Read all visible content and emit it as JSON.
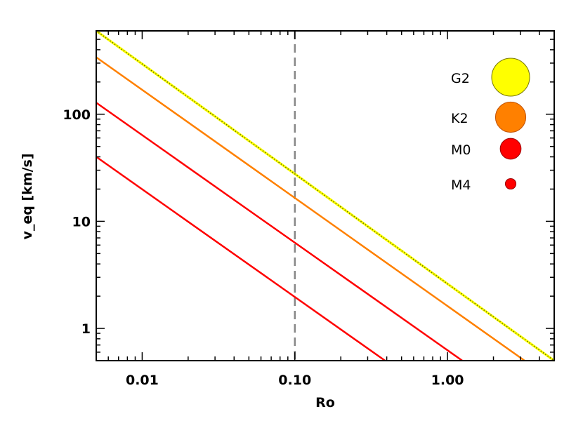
{
  "chart_data": {
    "type": "line",
    "title": "",
    "xlabel": "Ro",
    "ylabel": "v_eq [km/s]",
    "xscale": "log",
    "yscale": "log",
    "xlim": [
      0.005,
      5.0
    ],
    "ylim": [
      0.5,
      600
    ],
    "x_ticks": [
      {
        "value": 0.01,
        "label": "0.01"
      },
      {
        "value": 0.1,
        "label": "0.10"
      },
      {
        "value": 1.0,
        "label": "1.00"
      }
    ],
    "y_ticks": [
      {
        "value": 1,
        "label": "1"
      },
      {
        "value": 10,
        "label": "10"
      },
      {
        "value": 100,
        "label": "100"
      }
    ],
    "reference_line": {
      "axis": "x",
      "value": 0.1,
      "style": "dashed",
      "color": "#888888"
    },
    "legend_position": "top-right",
    "series": [
      {
        "name": "G2",
        "color": "#ffff00",
        "edge": "#777700",
        "style": "dotted",
        "marker_radius": 1.0,
        "x": [
          0.005,
          5.0
        ],
        "y": [
          600,
          0.5
        ]
      },
      {
        "name": "K2",
        "color": "#ff8000",
        "edge": "#c05000",
        "style": "solid",
        "marker_radius": 0.8,
        "x": [
          0.005,
          3.2
        ],
        "y": [
          340,
          0.5
        ]
      },
      {
        "name": "M0",
        "color": "#ff0000",
        "edge": "#990000",
        "style": "solid",
        "marker_radius": 0.55,
        "x": [
          0.005,
          1.25
        ],
        "y": [
          128,
          0.5
        ]
      },
      {
        "name": "M4",
        "color": "#ff0000",
        "edge": "#990000",
        "style": "solid",
        "marker_radius": 0.28,
        "x": [
          0.005,
          0.39
        ],
        "y": [
          40,
          0.5
        ]
      }
    ]
  }
}
